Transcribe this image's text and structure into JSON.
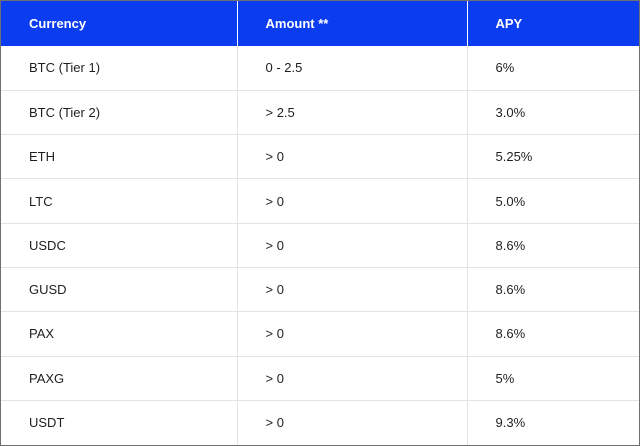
{
  "table": {
    "headers": [
      "Currency",
      "Amount **",
      "APY"
    ],
    "rows": [
      [
        "BTC (Tier 1)",
        "0 - 2.5",
        "6%"
      ],
      [
        "BTC (Tier 2)",
        "> 2.5",
        "3.0%"
      ],
      [
        "ETH",
        "> 0",
        "5.25%"
      ],
      [
        "LTC",
        "> 0",
        "5.0%"
      ],
      [
        "USDC",
        "> 0",
        "8.6%"
      ],
      [
        "GUSD",
        "> 0",
        "8.6%"
      ],
      [
        "PAX",
        "> 0",
        "8.6%"
      ],
      [
        "PAXG",
        "> 0",
        "5%"
      ],
      [
        "USDT",
        "> 0",
        "9.3%"
      ]
    ]
  },
  "colors": {
    "header_background": "#0b3cf0",
    "header_text": "#ffffff",
    "body_text": "#1f1f1f",
    "grid_line": "#e3e3e3"
  }
}
